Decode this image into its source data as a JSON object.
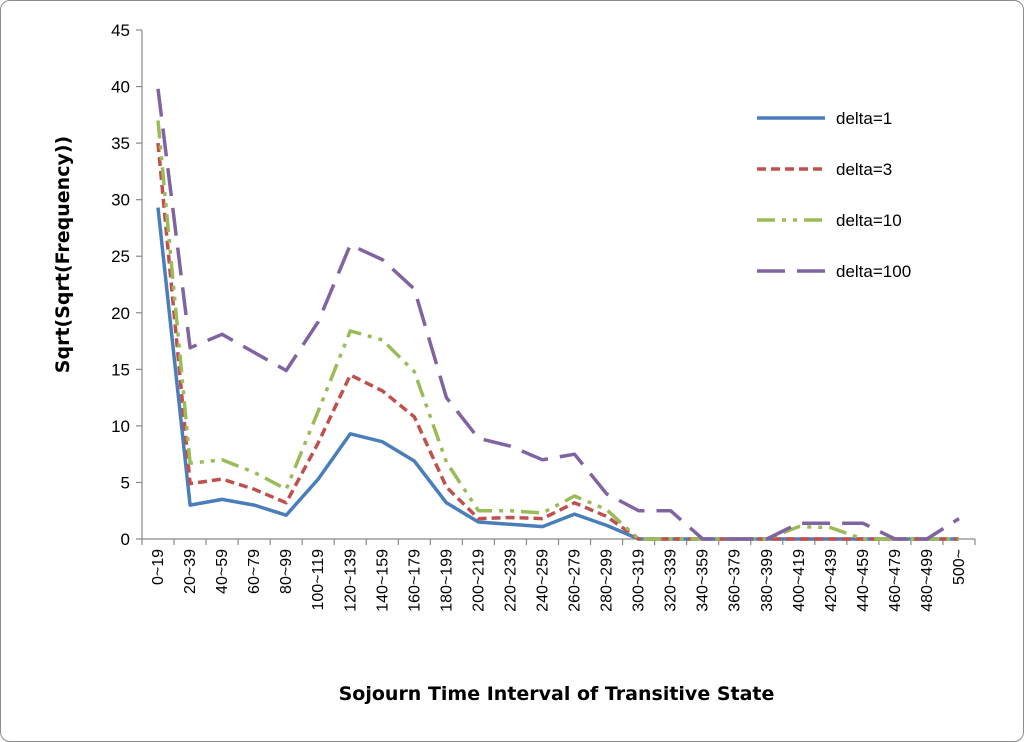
{
  "chart_data": {
    "type": "line",
    "title": "",
    "xlabel": "Sojourn Time Interval of Transitive State",
    "ylabel": "Sqrt(Sqrt(Frequency))",
    "ylim": [
      0,
      45
    ],
    "yticks": [
      0,
      5,
      10,
      15,
      20,
      25,
      30,
      35,
      40,
      45
    ],
    "grid": false,
    "legend_position": "right",
    "categories": [
      "0~19",
      "20~39",
      "40~59",
      "60~79",
      "80~99",
      "100~119",
      "120~139",
      "140~159",
      "160~179",
      "180~199",
      "200~219",
      "220~239",
      "240~259",
      "260~279",
      "280~299",
      "300~319",
      "320~339",
      "340~359",
      "360~379",
      "380~399",
      "400~419",
      "420~439",
      "440~459",
      "460~479",
      "480~499",
      "500~"
    ],
    "series": [
      {
        "name": "delta=1",
        "color": "#4a7ebb",
        "dash": "solid",
        "values": [
          29.3,
          3.0,
          3.5,
          3.0,
          2.1,
          5.3,
          9.3,
          8.6,
          6.9,
          3.2,
          1.5,
          1.3,
          1.1,
          2.2,
          1.2,
          0,
          0,
          0,
          0,
          0,
          0,
          0,
          0,
          0,
          0,
          0
        ]
      },
      {
        "name": "delta=3",
        "color": "#c0504d",
        "dash": "short-dash",
        "values": [
          35.0,
          4.9,
          5.3,
          4.4,
          3.2,
          8.5,
          14.5,
          13.1,
          10.8,
          4.6,
          1.8,
          1.9,
          1.8,
          3.2,
          2.0,
          0,
          0,
          0,
          0,
          0,
          0,
          0,
          0,
          0,
          0,
          0
        ]
      },
      {
        "name": "delta=10",
        "color": "#9bbb59",
        "dash": "dash-dot-dot",
        "values": [
          37.0,
          6.7,
          7.0,
          5.9,
          4.4,
          11.3,
          18.4,
          17.6,
          14.8,
          6.8,
          2.5,
          2.5,
          2.3,
          3.8,
          2.6,
          0,
          0,
          0,
          0,
          0,
          1.1,
          1.0,
          0,
          0,
          0,
          0
        ]
      },
      {
        "name": "delta=100",
        "color": "#8064a2",
        "dash": "long-dash",
        "values": [
          39.8,
          16.9,
          18.1,
          16.5,
          14.9,
          19.2,
          26.0,
          24.7,
          22.1,
          12.5,
          8.9,
          8.2,
          7.0,
          7.5,
          4.0,
          2.5,
          2.5,
          0,
          0,
          0,
          1.4,
          1.4,
          1.4,
          0,
          0,
          1.8
        ]
      }
    ]
  }
}
